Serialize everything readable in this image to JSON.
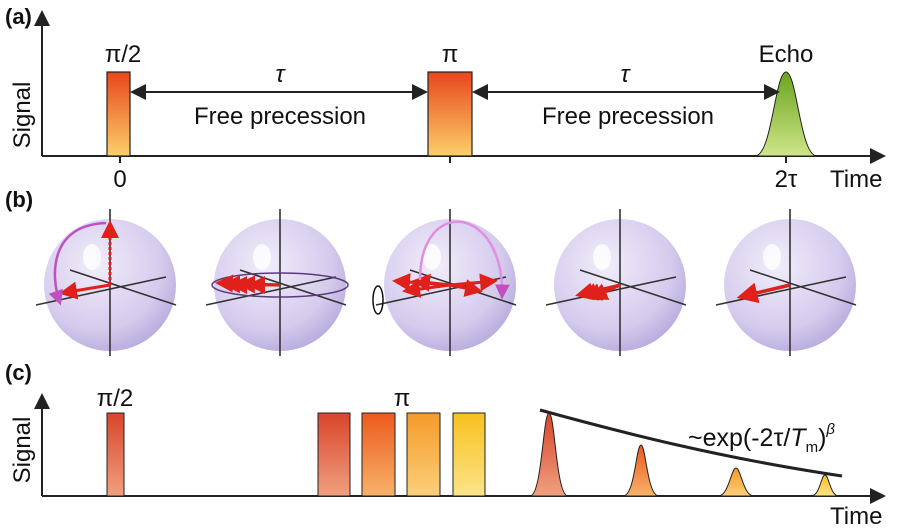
{
  "panel_a": {
    "label": "(a)",
    "y_label": "Signal",
    "x_label": "Time",
    "pulse_1": "π/2",
    "pulse_2": "π",
    "echo": "Echo",
    "tau_1": "τ",
    "tau_2": "τ",
    "interval_1": "Free precession",
    "interval_2": "Free precession",
    "tick_start": "0",
    "tick_echo": "2τ"
  },
  "panel_b": {
    "label": "(b)"
  },
  "panel_c": {
    "label": "(c)",
    "y_label": "Signal",
    "x_label": "Time",
    "pulse_1": "π/2",
    "pulse_2": "π",
    "decay_formula": {
      "prefix": "~exp(-2τ/",
      "symbol": "T",
      "subscript": "m",
      "suffix": ")",
      "exponent": "β"
    }
  }
}
